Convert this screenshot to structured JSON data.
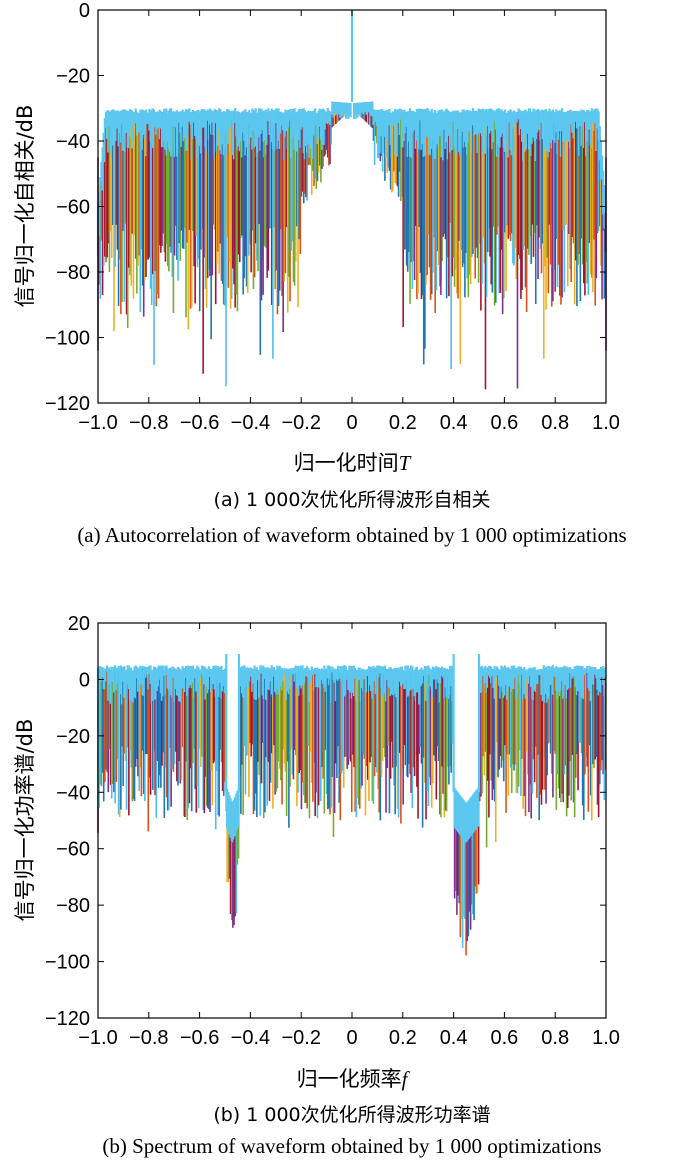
{
  "colors": {
    "series": [
      "#1f77b4",
      "#d95319",
      "#edb120",
      "#7e2f8e",
      "#77ac30",
      "#4dbeee",
      "#a2142f"
    ],
    "top": "#5bc8f0"
  },
  "chart_data": [
    {
      "type": "line",
      "ylabel": "信号归一化自相关/dB",
      "xlabel_main": "归一化时间",
      "xlabel_var": "T",
      "caption_zh": "(a) 1 000次优化所得波形自相关",
      "caption_en": "(a) Autocorrelation of waveform obtained by 1 000 optimizations",
      "xlim": [
        -1.0,
        1.0
      ],
      "ylim": [
        -120,
        0
      ],
      "xticks": [
        "−1.0",
        "−0.8",
        "−0.6",
        "−0.4",
        "−0.2",
        "0",
        "0.2",
        "0.4",
        "0.6",
        "0.8",
        "1.0"
      ],
      "yticks": [
        "0",
        "−20",
        "−40",
        "−60",
        "−80",
        "−100",
        "−120"
      ],
      "series_count": 1000,
      "features": {
        "main_lobe": {
          "x": 0,
          "y": 0
        },
        "sidelobe_level_near_center": -28,
        "sidelobe_level_plateau": -30,
        "fluctuation_min_typical": -85,
        "deep_nulls": [
          {
            "x": -0.35,
            "y": -87
          },
          {
            "x": 0.35,
            "y": -87
          },
          {
            "x": -1.0,
            "y": -104
          },
          {
            "x": 1.0,
            "y": -104
          }
        ]
      }
    },
    {
      "type": "line",
      "ylabel": "信号归一化功率谱/dB",
      "xlabel_main": "归一化频率",
      "xlabel_var": "f",
      "caption_zh": "(b) 1 000次优化所得波形功率谱",
      "caption_en": "(b) Spectrum of waveform obtained by 1 000 optimizations",
      "xlim": [
        -1.0,
        1.0
      ],
      "ylim": [
        -120,
        20
      ],
      "xticks": [
        "−1.0",
        "−0.8",
        "−0.6",
        "−0.4",
        "−0.2",
        "0",
        "0.2",
        "0.4",
        "0.6",
        "0.8",
        "1.0"
      ],
      "yticks": [
        "20",
        "0",
        "−20",
        "−40",
        "−60",
        "−80",
        "−100",
        "−120"
      ],
      "series_count": 1000,
      "features": {
        "passband_level": 3,
        "peak_level": 9,
        "notches": [
          {
            "center": -0.47,
            "width": 0.05,
            "depth": -95
          },
          {
            "center": 0.45,
            "width": 0.1,
            "depth": -102
          }
        ]
      }
    }
  ]
}
